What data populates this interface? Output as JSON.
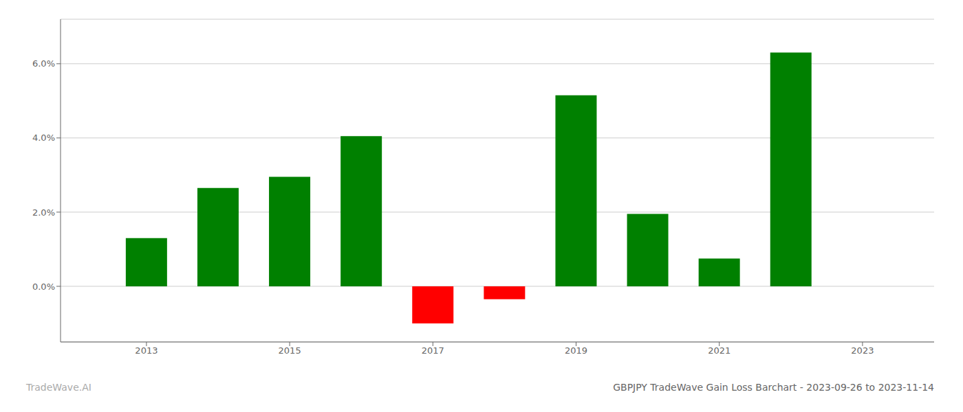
{
  "chart_data": {
    "type": "bar",
    "title": "GBPJPY TradeWave Gain Loss Barchart - 2023-09-26 to 2023-11-14",
    "annotations": [
      {
        "text": "TradeWave.AI"
      }
    ],
    "x": [
      2013,
      2014,
      2015,
      2016,
      2017,
      2018,
      2019,
      2020,
      2021,
      2022
    ],
    "values": [
      0.013,
      0.0265,
      0.0295,
      0.0405,
      -0.01,
      -0.0035,
      0.0515,
      0.0195,
      0.0075,
      0.063
    ],
    "colors": [
      "#008000",
      "#008000",
      "#008000",
      "#008000",
      "#ff0000",
      "#ff0000",
      "#008000",
      "#008000",
      "#008000",
      "#008000"
    ],
    "xlim": [
      2011.8,
      2024.0
    ],
    "xticks": [
      2013,
      2015,
      2017,
      2019,
      2021,
      2023
    ],
    "ylim": [
      -0.015,
      0.072
    ],
    "yticks": [
      {
        "value": 0.0,
        "label": "0.0%"
      },
      {
        "value": 0.02,
        "label": "2.0%"
      },
      {
        "value": 0.04,
        "label": "4.0%"
      },
      {
        "value": 0.06,
        "label": "6.0%"
      }
    ],
    "grid": true
  }
}
